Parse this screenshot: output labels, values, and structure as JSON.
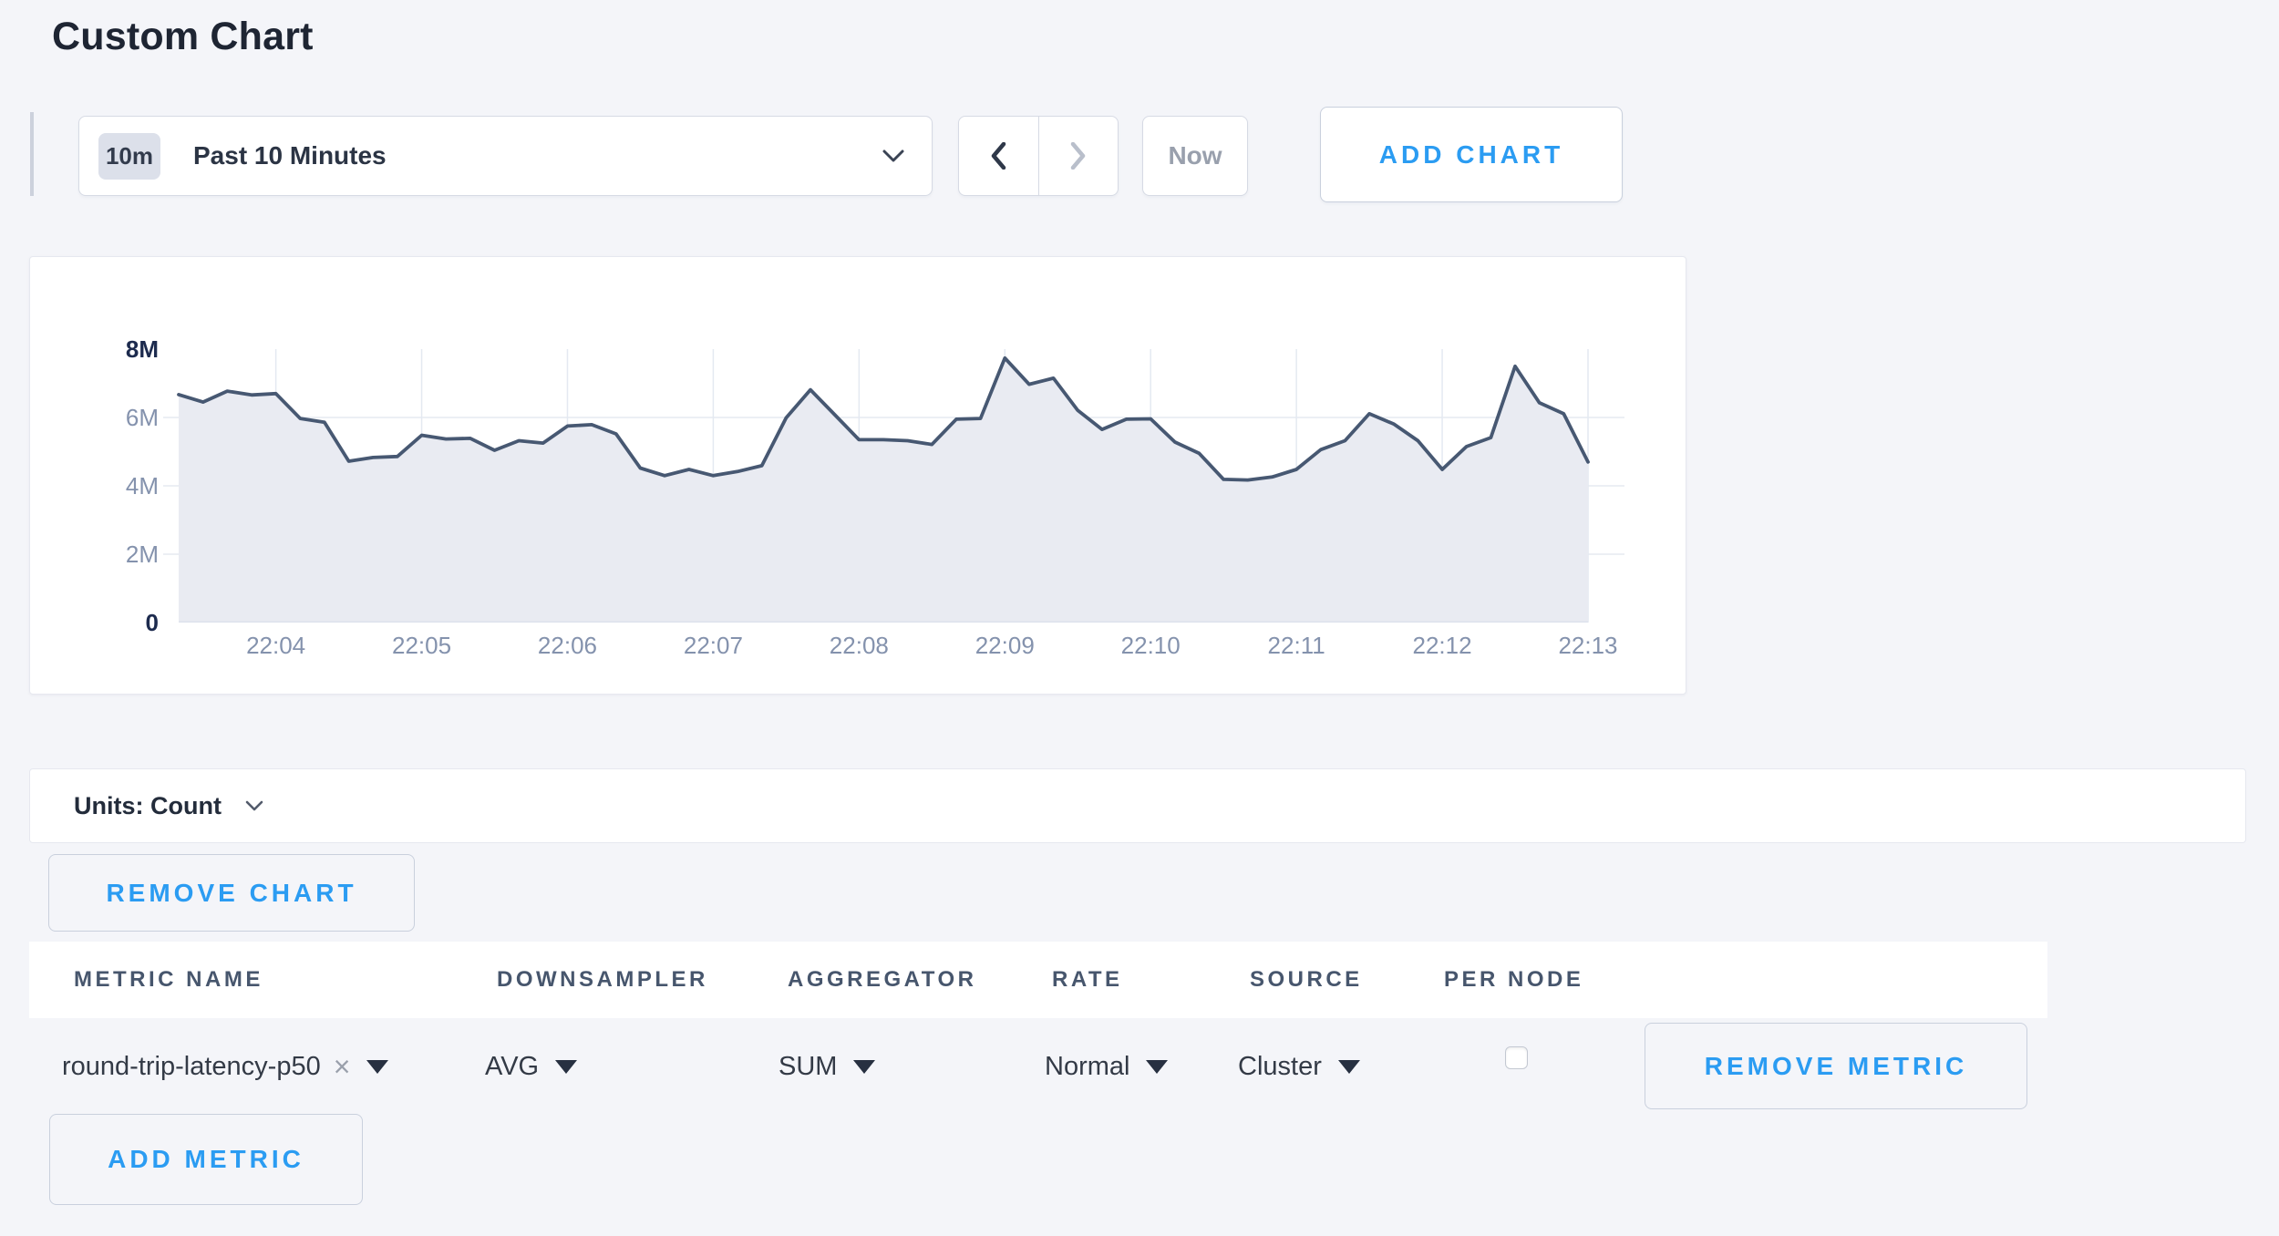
{
  "page": {
    "title": "Custom Chart",
    "background": "#f4f5f9",
    "accent_blue": "#2b9cf2"
  },
  "toolbar": {
    "time_window_badge": "10m",
    "time_window_label": "Past 10 Minutes",
    "now_label": "Now",
    "add_chart_label": "ADD CHART"
  },
  "icons": {
    "close": "×"
  },
  "chart_data": {
    "type": "area",
    "title": "",
    "legend": false,
    "grid": true,
    "x_axis": {
      "tick_labels": [
        "22:04",
        "22:05",
        "22:06",
        "22:07",
        "22:08",
        "22:09",
        "22:10",
        "22:11",
        "22:12",
        "22:13"
      ],
      "start_time": "22:03:20",
      "interval_seconds": 10
    },
    "y_axis": {
      "tick_labels": [
        "0",
        "2M",
        "4M",
        "6M",
        "8M"
      ],
      "min": 0,
      "max_millions": 8,
      "unit": "Count"
    },
    "series": [
      {
        "name": "round-trip-latency-p50",
        "line_color": "#475872",
        "fill_color": "#e9ebf2",
        "values_millions": [
          6.67,
          6.45,
          6.77,
          6.66,
          6.7,
          5.97,
          5.86,
          4.72,
          4.83,
          4.86,
          5.48,
          5.37,
          5.39,
          5.04,
          5.32,
          5.25,
          5.75,
          5.79,
          5.52,
          4.52,
          4.3,
          4.48,
          4.3,
          4.42,
          4.59,
          5.99,
          6.81,
          6.08,
          5.35,
          5.35,
          5.32,
          5.21,
          5.95,
          5.97,
          7.74,
          6.97,
          7.15,
          6.21,
          5.65,
          5.95,
          5.96,
          5.28,
          4.95,
          4.19,
          4.17,
          4.26,
          4.48,
          5.06,
          5.32,
          6.11,
          5.81,
          5.32,
          4.48,
          5.15,
          5.41,
          7.5,
          6.43,
          6.11,
          4.7
        ]
      }
    ]
  },
  "units_bar": {
    "label": "Units: Count"
  },
  "chart_actions": {
    "remove_chart_label": "REMOVE CHART"
  },
  "metrics_table": {
    "headers": [
      "METRIC NAME",
      "DOWNSAMPLER",
      "AGGREGATOR",
      "RATE",
      "SOURCE",
      "PER NODE"
    ],
    "rows": [
      {
        "metric_name": "round-trip-latency-p50",
        "downsampler": "AVG",
        "aggregator": "SUM",
        "rate": "Normal",
        "source": "Cluster",
        "per_node_checked": false,
        "remove_label": "REMOVE METRIC"
      }
    ],
    "add_metric_label": "ADD METRIC"
  }
}
